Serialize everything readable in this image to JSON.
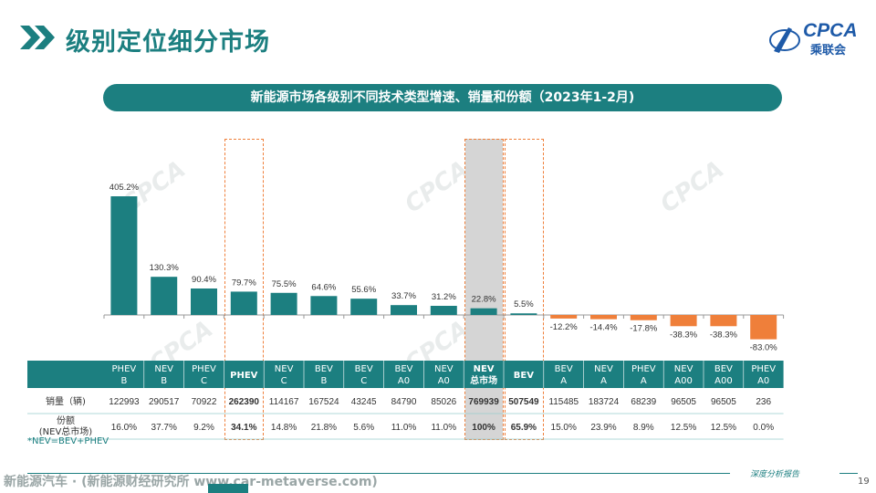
{
  "header": {
    "title": "级别定位细分市场",
    "logo_text": "CPCA",
    "logo_cn": "乘联会"
  },
  "subtitle": "新能源市场各级别不同技术类型增速、销量和份额（2023年1-2月)",
  "colors": {
    "teal": "#1c7f80",
    "orange": "#ef7f3a",
    "header_row": "#1c7f80"
  },
  "chart_data": {
    "type": "bar",
    "categories": [
      "PHEV B",
      "NEV B",
      "PHEV C",
      "PHEV",
      "NEV C",
      "BEV B",
      "BEV C",
      "BEV A0",
      "NEV A0",
      "NEV 总市场",
      "BEV",
      "BEV A",
      "NEV A",
      "PHEV A",
      "NEV A00",
      "BEV A00",
      "PHEV A0"
    ],
    "category_lines": [
      [
        "PHEV",
        "B"
      ],
      [
        "NEV",
        "B"
      ],
      [
        "PHEV",
        "C"
      ],
      [
        "PHEV"
      ],
      [
        "NEV",
        "C"
      ],
      [
        "BEV",
        "B"
      ],
      [
        "BEV",
        "C"
      ],
      [
        "BEV",
        "A0"
      ],
      [
        "NEV",
        "A0"
      ],
      [
        "NEV",
        "总市场"
      ],
      [
        "BEV"
      ],
      [
        "BEV",
        "A"
      ],
      [
        "NEV",
        "A"
      ],
      [
        "PHEV",
        "A"
      ],
      [
        "NEV",
        "A00"
      ],
      [
        "BEV",
        "A00"
      ],
      [
        "PHEV",
        "A0"
      ]
    ],
    "values": [
      405.2,
      130.3,
      90.4,
      79.7,
      75.5,
      64.6,
      55.6,
      33.7,
      31.2,
      22.8,
      5.5,
      -12.2,
      -14.4,
      -17.8,
      -38.3,
      -38.3,
      -83.0
    ],
    "value_labels": [
      "405.2%",
      "130.3%",
      "90.4%",
      "79.7%",
      "75.5%",
      "64.6%",
      "55.6%",
      "33.7%",
      "31.2%",
      "22.8%",
      "5.5%",
      "-12.2%",
      "-14.4%",
      "-17.8%",
      "-38.3%",
      "-38.3%",
      "-83.0%"
    ],
    "highlight": [
      "PHEV",
      "NEV 总市场",
      "BEV"
    ],
    "table": {
      "rows": [
        {
          "label": [
            "销量（辆)"
          ],
          "values": [
            "122993",
            "290517",
            "70922",
            "262390",
            "114167",
            "167524",
            "43245",
            "84790",
            "85026",
            "769939",
            "507549",
            "115485",
            "183724",
            "68239",
            "96505",
            "96505",
            "236"
          ]
        },
        {
          "label": [
            "份额",
            "(NEV总市场)"
          ],
          "values": [
            "16.0%",
            "37.7%",
            "9.2%",
            "34.1%",
            "14.8%",
            "21.8%",
            "5.6%",
            "11.0%",
            "11.0%",
            "100%",
            "65.9%",
            "15.0%",
            "23.9%",
            "8.9%",
            "12.5%",
            "12.5%",
            "0.0%"
          ]
        }
      ]
    }
  },
  "footnote": "*NEV=BEV+PHEV",
  "footer": {
    "source": "新能源汽车 · (新能源财经研究所 www.car-metaverse.com)",
    "tagline": "深度分析报告",
    "page_number": "19"
  }
}
